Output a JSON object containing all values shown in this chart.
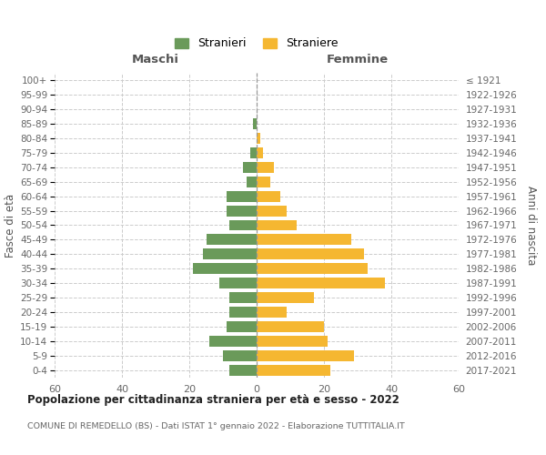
{
  "age_groups": [
    "100+",
    "95-99",
    "90-94",
    "85-89",
    "80-84",
    "75-79",
    "70-74",
    "65-69",
    "60-64",
    "55-59",
    "50-54",
    "45-49",
    "40-44",
    "35-39",
    "30-34",
    "25-29",
    "20-24",
    "15-19",
    "10-14",
    "5-9",
    "0-4"
  ],
  "birth_years": [
    "≤ 1921",
    "1922-1926",
    "1927-1931",
    "1932-1936",
    "1937-1941",
    "1942-1946",
    "1947-1951",
    "1952-1956",
    "1957-1961",
    "1962-1966",
    "1967-1971",
    "1972-1976",
    "1977-1981",
    "1982-1986",
    "1987-1991",
    "1992-1996",
    "1997-2001",
    "2002-2006",
    "2007-2011",
    "2012-2016",
    "2017-2021"
  ],
  "maschi": [
    0,
    0,
    0,
    1,
    0,
    2,
    4,
    3,
    9,
    9,
    8,
    15,
    16,
    19,
    11,
    8,
    8,
    9,
    14,
    10,
    8
  ],
  "femmine": [
    0,
    0,
    0,
    0,
    1,
    2,
    5,
    4,
    7,
    9,
    12,
    28,
    32,
    33,
    38,
    17,
    9,
    20,
    21,
    29,
    22
  ],
  "color_maschi": "#6a9a5a",
  "color_femmine": "#f5b731",
  "title": "Popolazione per cittadinanza straniera per età e sesso - 2022",
  "subtitle": "COMUNE DI REMEDELLO (BS) - Dati ISTAT 1° gennaio 2022 - Elaborazione TUTTITALIA.IT",
  "label_maschi": "Maschi",
  "label_femmine": "Femmine",
  "ylabel_left": "Fasce di età",
  "ylabel_right": "Anni di nascita",
  "legend_maschi": "Stranieri",
  "legend_femmine": "Straniere",
  "xlim": 60,
  "background_color": "#ffffff",
  "grid_color": "#cccccc"
}
